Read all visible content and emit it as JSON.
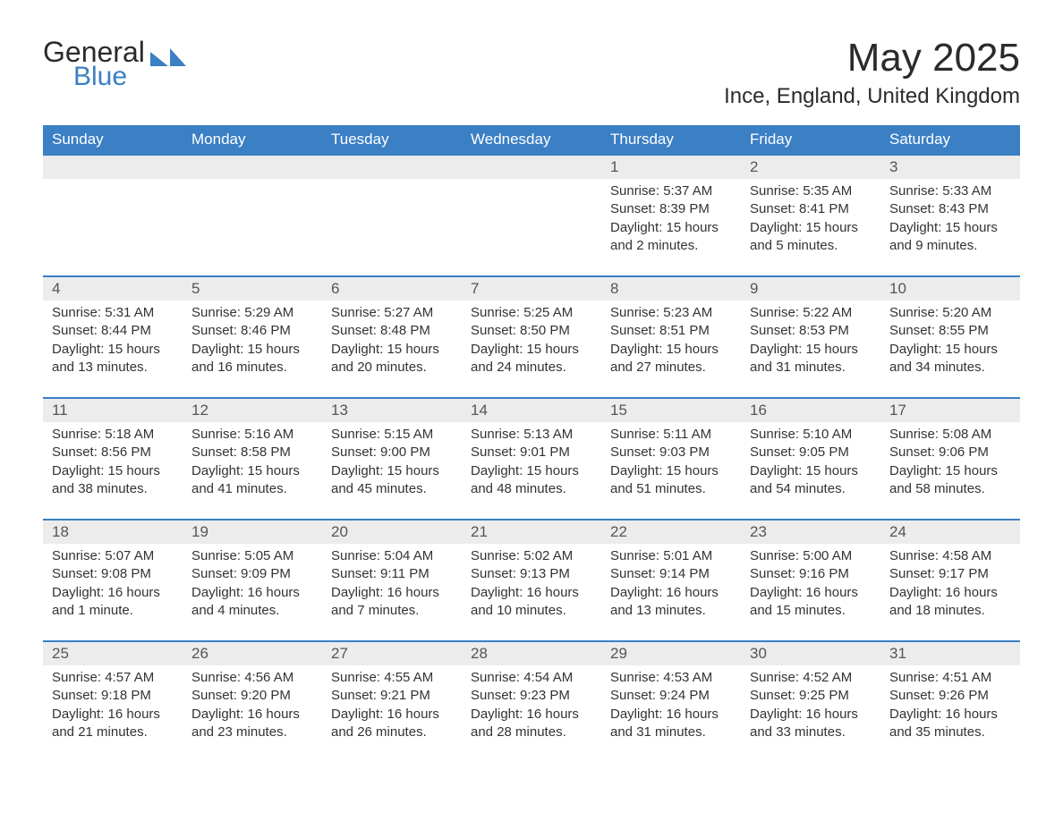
{
  "logo": {
    "word1": "General",
    "word2": "Blue"
  },
  "title": "May 2025",
  "location": "Ince, England, United Kingdom",
  "colors": {
    "header_bg": "#3b7fc4",
    "header_text": "#ffffff",
    "daynum_bg": "#ececec",
    "week_border": "#3b7fc4",
    "body_text": "#333333",
    "logo_blue": "#3b7fc4"
  },
  "weekdays": [
    "Sunday",
    "Monday",
    "Tuesday",
    "Wednesday",
    "Thursday",
    "Friday",
    "Saturday"
  ],
  "weeks": [
    [
      {
        "n": "",
        "lines": []
      },
      {
        "n": "",
        "lines": []
      },
      {
        "n": "",
        "lines": []
      },
      {
        "n": "",
        "lines": []
      },
      {
        "n": "1",
        "lines": [
          "Sunrise: 5:37 AM",
          "Sunset: 8:39 PM",
          "Daylight: 15 hours and 2 minutes."
        ]
      },
      {
        "n": "2",
        "lines": [
          "Sunrise: 5:35 AM",
          "Sunset: 8:41 PM",
          "Daylight: 15 hours and 5 minutes."
        ]
      },
      {
        "n": "3",
        "lines": [
          "Sunrise: 5:33 AM",
          "Sunset: 8:43 PM",
          "Daylight: 15 hours and 9 minutes."
        ]
      }
    ],
    [
      {
        "n": "4",
        "lines": [
          "Sunrise: 5:31 AM",
          "Sunset: 8:44 PM",
          "Daylight: 15 hours and 13 minutes."
        ]
      },
      {
        "n": "5",
        "lines": [
          "Sunrise: 5:29 AM",
          "Sunset: 8:46 PM",
          "Daylight: 15 hours and 16 minutes."
        ]
      },
      {
        "n": "6",
        "lines": [
          "Sunrise: 5:27 AM",
          "Sunset: 8:48 PM",
          "Daylight: 15 hours and 20 minutes."
        ]
      },
      {
        "n": "7",
        "lines": [
          "Sunrise: 5:25 AM",
          "Sunset: 8:50 PM",
          "Daylight: 15 hours and 24 minutes."
        ]
      },
      {
        "n": "8",
        "lines": [
          "Sunrise: 5:23 AM",
          "Sunset: 8:51 PM",
          "Daylight: 15 hours and 27 minutes."
        ]
      },
      {
        "n": "9",
        "lines": [
          "Sunrise: 5:22 AM",
          "Sunset: 8:53 PM",
          "Daylight: 15 hours and 31 minutes."
        ]
      },
      {
        "n": "10",
        "lines": [
          "Sunrise: 5:20 AM",
          "Sunset: 8:55 PM",
          "Daylight: 15 hours and 34 minutes."
        ]
      }
    ],
    [
      {
        "n": "11",
        "lines": [
          "Sunrise: 5:18 AM",
          "Sunset: 8:56 PM",
          "Daylight: 15 hours and 38 minutes."
        ]
      },
      {
        "n": "12",
        "lines": [
          "Sunrise: 5:16 AM",
          "Sunset: 8:58 PM",
          "Daylight: 15 hours and 41 minutes."
        ]
      },
      {
        "n": "13",
        "lines": [
          "Sunrise: 5:15 AM",
          "Sunset: 9:00 PM",
          "Daylight: 15 hours and 45 minutes."
        ]
      },
      {
        "n": "14",
        "lines": [
          "Sunrise: 5:13 AM",
          "Sunset: 9:01 PM",
          "Daylight: 15 hours and 48 minutes."
        ]
      },
      {
        "n": "15",
        "lines": [
          "Sunrise: 5:11 AM",
          "Sunset: 9:03 PM",
          "Daylight: 15 hours and 51 minutes."
        ]
      },
      {
        "n": "16",
        "lines": [
          "Sunrise: 5:10 AM",
          "Sunset: 9:05 PM",
          "Daylight: 15 hours and 54 minutes."
        ]
      },
      {
        "n": "17",
        "lines": [
          "Sunrise: 5:08 AM",
          "Sunset: 9:06 PM",
          "Daylight: 15 hours and 58 minutes."
        ]
      }
    ],
    [
      {
        "n": "18",
        "lines": [
          "Sunrise: 5:07 AM",
          "Sunset: 9:08 PM",
          "Daylight: 16 hours and 1 minute."
        ]
      },
      {
        "n": "19",
        "lines": [
          "Sunrise: 5:05 AM",
          "Sunset: 9:09 PM",
          "Daylight: 16 hours and 4 minutes."
        ]
      },
      {
        "n": "20",
        "lines": [
          "Sunrise: 5:04 AM",
          "Sunset: 9:11 PM",
          "Daylight: 16 hours and 7 minutes."
        ]
      },
      {
        "n": "21",
        "lines": [
          "Sunrise: 5:02 AM",
          "Sunset: 9:13 PM",
          "Daylight: 16 hours and 10 minutes."
        ]
      },
      {
        "n": "22",
        "lines": [
          "Sunrise: 5:01 AM",
          "Sunset: 9:14 PM",
          "Daylight: 16 hours and 13 minutes."
        ]
      },
      {
        "n": "23",
        "lines": [
          "Sunrise: 5:00 AM",
          "Sunset: 9:16 PM",
          "Daylight: 16 hours and 15 minutes."
        ]
      },
      {
        "n": "24",
        "lines": [
          "Sunrise: 4:58 AM",
          "Sunset: 9:17 PM",
          "Daylight: 16 hours and 18 minutes."
        ]
      }
    ],
    [
      {
        "n": "25",
        "lines": [
          "Sunrise: 4:57 AM",
          "Sunset: 9:18 PM",
          "Daylight: 16 hours and 21 minutes."
        ]
      },
      {
        "n": "26",
        "lines": [
          "Sunrise: 4:56 AM",
          "Sunset: 9:20 PM",
          "Daylight: 16 hours and 23 minutes."
        ]
      },
      {
        "n": "27",
        "lines": [
          "Sunrise: 4:55 AM",
          "Sunset: 9:21 PM",
          "Daylight: 16 hours and 26 minutes."
        ]
      },
      {
        "n": "28",
        "lines": [
          "Sunrise: 4:54 AM",
          "Sunset: 9:23 PM",
          "Daylight: 16 hours and 28 minutes."
        ]
      },
      {
        "n": "29",
        "lines": [
          "Sunrise: 4:53 AM",
          "Sunset: 9:24 PM",
          "Daylight: 16 hours and 31 minutes."
        ]
      },
      {
        "n": "30",
        "lines": [
          "Sunrise: 4:52 AM",
          "Sunset: 9:25 PM",
          "Daylight: 16 hours and 33 minutes."
        ]
      },
      {
        "n": "31",
        "lines": [
          "Sunrise: 4:51 AM",
          "Sunset: 9:26 PM",
          "Daylight: 16 hours and 35 minutes."
        ]
      }
    ]
  ]
}
